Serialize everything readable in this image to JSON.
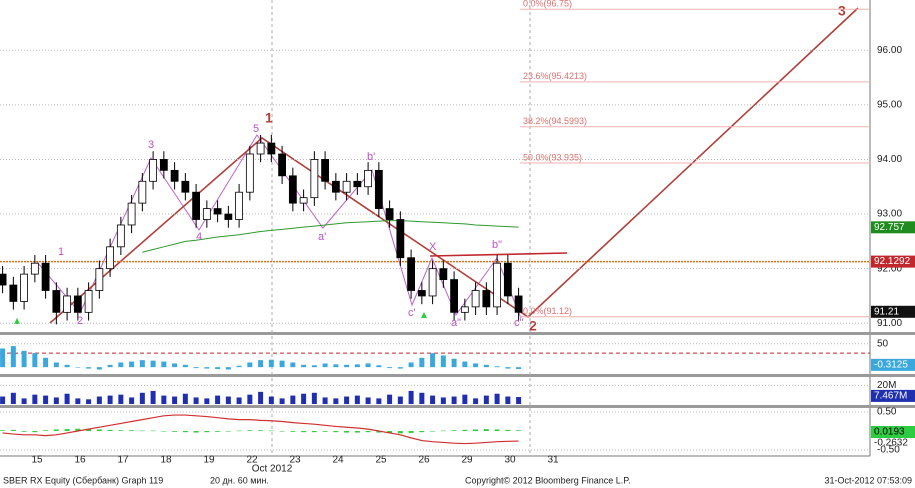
{
  "chart_data": {
    "type": "candlestick",
    "x_labels": [
      "15",
      "16",
      "17",
      "18",
      "19",
      "22",
      "23",
      "24",
      "25",
      "26",
      "29",
      "30",
      "31"
    ],
    "x_sublabel": "Oct 2012",
    "open": [
      91.9,
      91.7,
      91.4,
      91.9,
      92.1,
      91.6,
      91.2,
      91.5,
      91.2,
      91.6,
      92.0,
      92.4,
      92.8,
      93.2,
      93.6,
      94.0,
      93.8,
      93.6,
      93.4,
      92.9,
      93.1,
      93.0,
      92.9,
      93.4,
      94.1,
      94.3,
      94.1,
      93.7,
      93.2,
      93.3,
      94.0,
      93.6,
      93.4,
      93.6,
      93.5,
      93.8,
      93.1,
      92.9,
      92.2,
      91.6,
      91.5,
      92.0,
      91.8,
      91.2,
      91.3,
      91.6,
      91.3,
      92.1,
      91.5
    ],
    "high": [
      92.05,
      91.85,
      92.05,
      92.25,
      92.25,
      91.75,
      91.65,
      91.65,
      91.75,
      92.15,
      92.55,
      92.95,
      93.35,
      93.75,
      94.15,
      94.15,
      93.95,
      93.75,
      93.55,
      93.25,
      93.25,
      93.15,
      93.55,
      94.25,
      94.45,
      94.45,
      94.25,
      93.85,
      93.45,
      94.15,
      94.15,
      93.75,
      93.75,
      93.75,
      93.95,
      93.95,
      93.25,
      93.05,
      92.35,
      91.75,
      92.15,
      92.15,
      91.95,
      91.45,
      91.75,
      91.75,
      92.25,
      92.25,
      91.65
    ],
    "low": [
      91.55,
      91.25,
      91.25,
      91.75,
      91.45,
      90.98,
      91.05,
      91.05,
      91.05,
      91.45,
      91.85,
      92.25,
      92.65,
      93.05,
      93.45,
      93.65,
      93.45,
      93.25,
      92.75,
      92.75,
      92.85,
      92.75,
      92.75,
      93.25,
      93.95,
      93.95,
      93.55,
      93.05,
      93.05,
      93.15,
      93.45,
      93.25,
      93.25,
      93.35,
      93.35,
      92.95,
      92.75,
      92.05,
      91.45,
      91.35,
      91.35,
      91.65,
      91.05,
      91.05,
      91.15,
      91.15,
      91.15,
      91.35,
      91.05
    ],
    "close": [
      91.7,
      91.4,
      91.9,
      92.1,
      91.6,
      91.2,
      91.5,
      91.2,
      91.6,
      92.0,
      92.4,
      92.8,
      93.2,
      93.6,
      94.0,
      93.8,
      93.6,
      93.4,
      92.9,
      93.1,
      93.0,
      92.9,
      93.4,
      94.1,
      94.3,
      94.1,
      93.7,
      93.2,
      93.3,
      94.0,
      93.6,
      93.4,
      93.6,
      93.5,
      93.8,
      93.1,
      92.9,
      92.2,
      91.6,
      91.5,
      92.0,
      91.8,
      91.2,
      91.3,
      91.6,
      91.3,
      92.1,
      91.5,
      91.2
    ],
    "up_color": "#ffffff",
    "down_color": "#000000",
    "ylim": [
      90.84,
      96.92
    ],
    "yticks": [
      {
        "value": 91,
        "label": "91.00"
      },
      {
        "value": 92,
        "label": "92.00"
      },
      {
        "value": 93,
        "label": "93.00"
      },
      {
        "value": 94,
        "label": "94.00"
      },
      {
        "value": 95,
        "label": "95.00"
      },
      {
        "value": 96,
        "label": "96.00"
      }
    ],
    "grid": true,
    "ma": {
      "color": "#2e9a2e",
      "values": [
        null,
        null,
        null,
        null,
        null,
        null,
        null,
        null,
        null,
        null,
        null,
        null,
        null,
        92.3,
        92.35,
        92.4,
        92.45,
        92.5,
        92.52,
        92.55,
        92.58,
        92.6,
        92.62,
        92.65,
        92.68,
        92.7,
        92.72,
        92.74,
        92.76,
        92.78,
        92.8,
        92.82,
        92.84,
        92.85,
        92.86,
        92.87,
        92.88,
        92.88,
        92.87,
        92.86,
        92.85,
        92.84,
        92.83,
        92.82,
        92.8,
        92.79,
        92.78,
        92.77,
        92.76
      ]
    },
    "price_labels": [
      {
        "value": 92.757,
        "label": "92.757",
        "color": "#1e8c1e"
      },
      {
        "value": 92.1292,
        "label": "92.1292",
        "color": "#c0282d"
      },
      {
        "value": 91.21,
        "label": "91.21",
        "color": "#111111"
      }
    ],
    "fib_levels": [
      {
        "value": 96.75,
        "label": "0.0%(96.75)"
      },
      {
        "value": 95.4213,
        "label": "23.6%(95.4213)"
      },
      {
        "value": 94.5993,
        "label": "38.2%(94.5993)"
      },
      {
        "value": 93.935,
        "label": "50.0%(93.935)"
      },
      {
        "value": 91.12,
        "label": "0.0%(91.12)"
      }
    ],
    "wave_labels": [
      "1",
      "2",
      "3"
    ],
    "pattern_labels": [
      "1",
      "2",
      "3",
      "4",
      "5",
      "a'",
      "b'",
      "c'",
      "X",
      "a\"",
      "b\"",
      "c\""
    ],
    "panels": [
      {
        "type": "bar",
        "color": "#3aa8dc",
        "ylim": [
          -12.5,
          66.7
        ],
        "yticks": [
          50
        ],
        "ref_line": 30,
        "last_label": "-0.3125",
        "values": [
          40,
          45,
          35,
          30,
          20,
          10,
          5,
          0,
          -3,
          -5,
          5,
          10,
          12,
          15,
          14,
          12,
          8,
          5,
          -2,
          -3,
          -4,
          -5,
          3,
          10,
          15,
          16,
          14,
          10,
          5,
          4,
          8,
          6,
          5,
          6,
          8,
          4,
          -2,
          -3,
          10,
          20,
          30,
          25,
          18,
          12,
          8,
          5,
          2,
          -3,
          -4
        ]
      },
      {
        "type": "bar",
        "color": "#1f2fb0",
        "ylim": [
          0,
          28.9
        ],
        "yticks": [
          {
            "value": 20,
            "label": "20M"
          }
        ],
        "last_label": "7.467M",
        "values": [
          8,
          12,
          6,
          10,
          9,
          7,
          11,
          6,
          5,
          8,
          9,
          10,
          7,
          12,
          14,
          9,
          8,
          11,
          7,
          6,
          9,
          8,
          7,
          10,
          13,
          8,
          6,
          9,
          11,
          12,
          7,
          6,
          8,
          9,
          7,
          6,
          10,
          8,
          14,
          12,
          9,
          7,
          8,
          10,
          6,
          9,
          11,
          8,
          7.467
        ]
      },
      {
        "type": "line",
        "ylim": [
          -0.63,
          0.605
        ],
        "yticks": [
          {
            "value": 0.5,
            "label": "0.50"
          },
          {
            "value": -0.5,
            "label": "-0.50"
          }
        ],
        "series": [
          {
            "type": "bar",
            "color": "#2ecc40",
            "last_label": "0.0193",
            "values": [
              0.02,
              0.03,
              -0.02,
              -0.03,
              0.02,
              0.04,
              0.05,
              0.06,
              0.05,
              0.04,
              0.03,
              0.02,
              0.02,
              0.01,
              0.01,
              0,
              -0.02,
              -0.03,
              -0.04,
              -0.03,
              -0.02,
              -0.01,
              0.01,
              0.02,
              0.02,
              0.01,
              -0.01,
              -0.02,
              -0.03,
              -0.03,
              -0.02,
              -0.03,
              -0.04,
              -0.04,
              -0.03,
              -0.04,
              -0.05,
              -0.06,
              -0.05,
              -0.03,
              -0.01,
              0.01,
              0.02,
              0.03,
              0.04,
              0.05,
              0.04,
              0.03,
              0.0193
            ]
          },
          {
            "type": "line",
            "color": "#d03030",
            "last_label": "-0.2632",
            "values": [
              -0.05,
              -0.08,
              -0.1,
              -0.1,
              -0.12,
              -0.1,
              -0.05,
              0,
              0.05,
              0.1,
              0.15,
              0.2,
              0.25,
              0.3,
              0.35,
              0.4,
              0.42,
              0.42,
              0.4,
              0.38,
              0.35,
              0.32,
              0.3,
              0.3,
              0.28,
              0.27,
              0.25,
              0.22,
              0.2,
              0.18,
              0.15,
              0.12,
              0.1,
              0.08,
              0.05,
              0,
              -0.05,
              -0.1,
              -0.18,
              -0.25,
              -0.28,
              -0.3,
              -0.32,
              -0.33,
              -0.32,
              -0.3,
              -0.28,
              -0.27,
              -0.2632
            ]
          }
        ]
      }
    ]
  },
  "footer": {
    "security": "SBER RX Equity (Сбербанк) Graph 119",
    "period": "20 дн. 60 мин.",
    "copyright": "Copyright© 2012 Bloomberg Finance L.P.",
    "timestamp": "31-Oct-2012 07:53:09"
  }
}
